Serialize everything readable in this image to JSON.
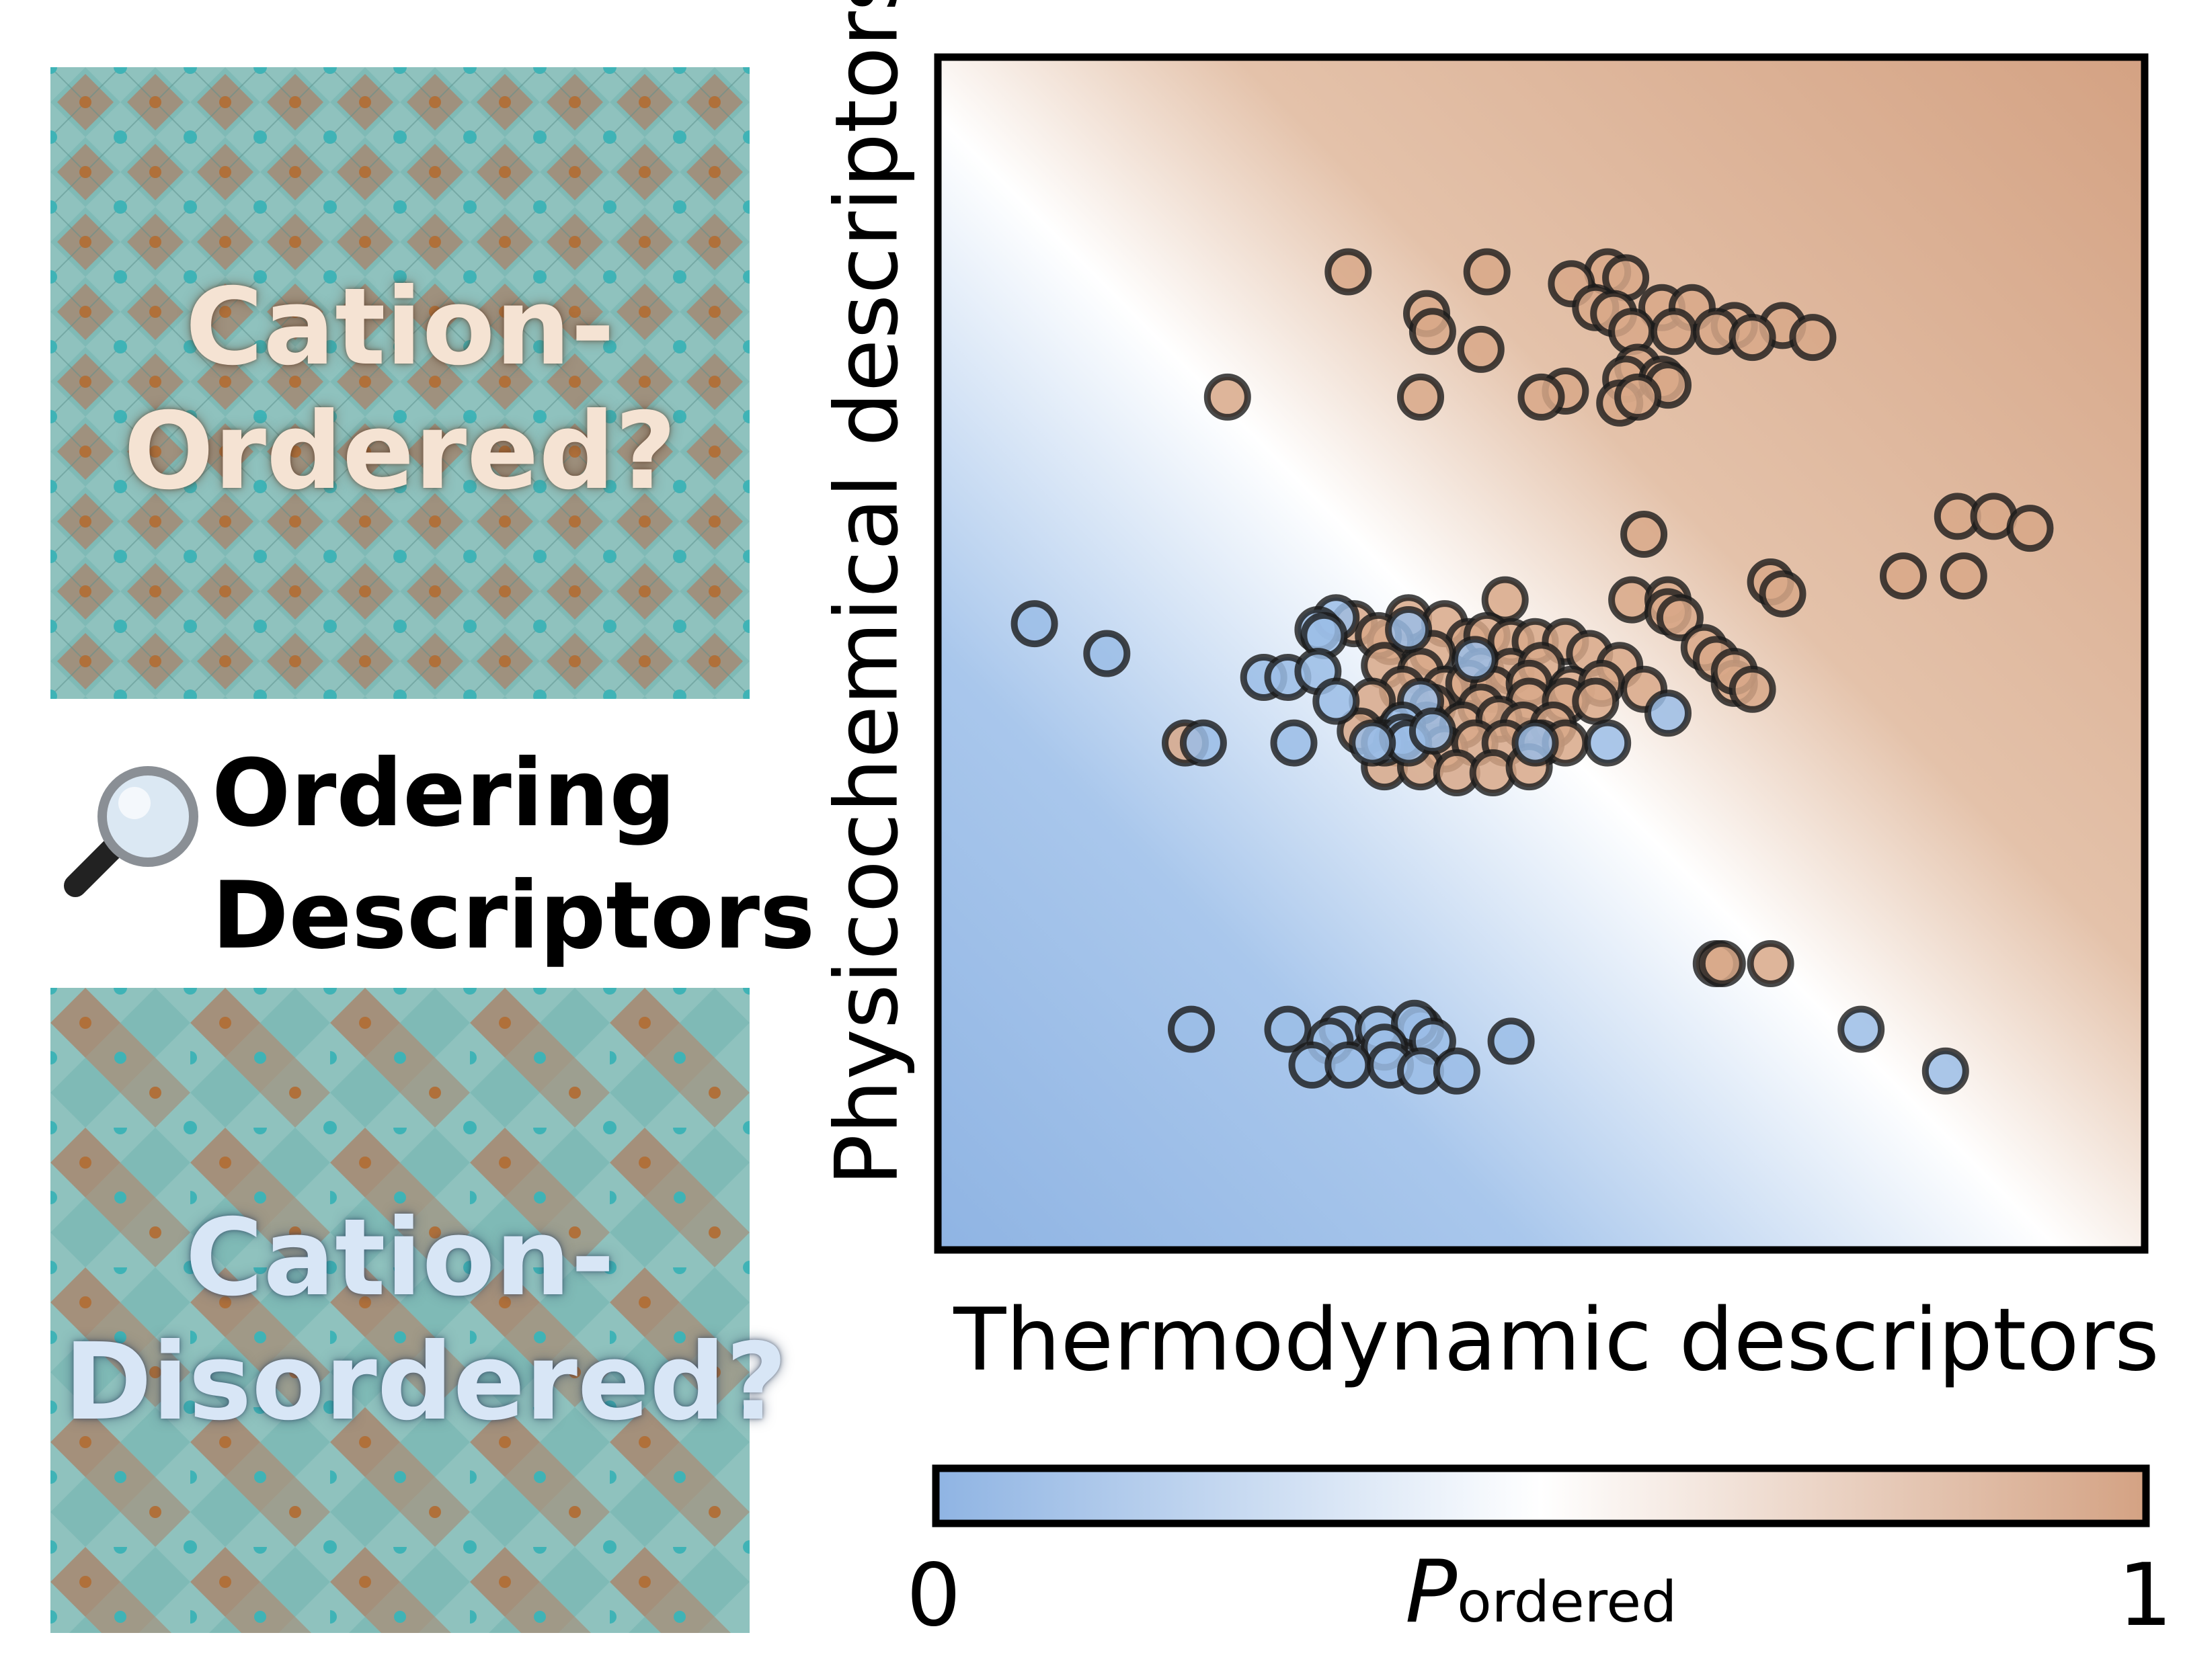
{
  "left_panel": {
    "ordered_label_line1": "Cation-",
    "ordered_label_line2": "Ordered?",
    "disordered_label_line1": "Cation-",
    "disordered_label_line2": "Disordered?",
    "title_line1": "Ordering",
    "title_line2": "Descriptors",
    "icon": "magnifying-glass-icon",
    "colors": {
      "teal": "#7bbcb8",
      "brown": "#a9836a",
      "atom_teal": "#3fb3b6",
      "atom_brown": "#b0703a"
    }
  },
  "colors": {
    "ordered": "#d8a888",
    "disordered": "#9bbde6",
    "midpoint": "#ffffff",
    "marker_edge": "#1a1a1a"
  },
  "chart_data": {
    "type": "scatter",
    "xlabel": "Thermodynamic descriptors",
    "ylabel": "Physicochemical descriptors",
    "xlim": [
      0,
      100
    ],
    "ylim": [
      0,
      100
    ],
    "ticks_shown": false,
    "grid": false,
    "background": "probability field P_ordered, decision boundary from upper-left to lower-right",
    "colorbar": {
      "label_symbol": "P",
      "label_subscript": "ordered",
      "min_label": "0",
      "max_label": "1",
      "min": 0,
      "max": 1
    },
    "series": [
      {
        "name": "ordered",
        "color": "#d8a888",
        "points": [
          [
            34,
            82
          ],
          [
            45.5,
            82
          ],
          [
            55.5,
            82
          ],
          [
            57,
            81.5
          ],
          [
            52.5,
            81
          ],
          [
            40.5,
            78.5
          ],
          [
            54.5,
            79
          ],
          [
            56,
            78.5
          ],
          [
            60,
            79
          ],
          [
            62.5,
            79
          ],
          [
            66,
            77.5
          ],
          [
            70,
            77.5
          ],
          [
            41,
            77
          ],
          [
            57.5,
            77
          ],
          [
            61,
            77
          ],
          [
            64.5,
            77
          ],
          [
            67.5,
            76.5
          ],
          [
            72.5,
            76.5
          ],
          [
            45,
            75.5
          ],
          [
            58,
            74
          ],
          [
            57,
            73
          ],
          [
            60,
            73
          ],
          [
            52,
            72
          ],
          [
            60.5,
            72.5
          ],
          [
            40,
            71.5
          ],
          [
            24,
            71.5
          ],
          [
            50,
            71.5
          ],
          [
            56.5,
            71
          ],
          [
            58,
            71.5
          ],
          [
            58.5,
            60
          ],
          [
            84.5,
            61.5
          ],
          [
            87.5,
            61.5
          ],
          [
            90.5,
            60.5
          ],
          [
            80,
            56.5
          ],
          [
            85,
            56.5
          ],
          [
            69,
            56
          ],
          [
            70,
            55
          ],
          [
            57.5,
            54.5
          ],
          [
            60.5,
            54.5
          ],
          [
            47,
            54.5
          ],
          [
            60.5,
            53.5
          ],
          [
            61.5,
            53
          ],
          [
            39,
            53
          ],
          [
            42,
            52.5
          ],
          [
            34.5,
            52.5
          ],
          [
            37.5,
            51
          ],
          [
            44,
            51
          ],
          [
            45.5,
            51.5
          ],
          [
            47.5,
            51
          ],
          [
            49.5,
            51
          ],
          [
            52,
            51
          ],
          [
            36.5,
            51.5
          ],
          [
            41,
            50
          ],
          [
            54,
            50
          ],
          [
            63.5,
            50.5
          ],
          [
            64.5,
            49.5
          ],
          [
            37,
            49
          ],
          [
            40,
            48.5
          ],
          [
            45,
            48.5
          ],
          [
            47.5,
            48.5
          ],
          [
            50,
            49
          ],
          [
            56.5,
            49
          ],
          [
            38.5,
            47
          ],
          [
            42,
            47
          ],
          [
            44,
            47.5
          ],
          [
            46,
            47
          ],
          [
            49,
            47.5
          ],
          [
            52.5,
            47
          ],
          [
            55,
            47.5
          ],
          [
            58.5,
            47
          ],
          [
            66,
            47.5
          ],
          [
            66,
            48.5
          ],
          [
            67.5,
            47
          ],
          [
            36,
            46
          ],
          [
            41,
            45.5
          ],
          [
            45,
            45.5
          ],
          [
            49,
            46
          ],
          [
            52,
            46
          ],
          [
            54.5,
            46
          ],
          [
            40.5,
            44
          ],
          [
            43.5,
            44
          ],
          [
            46.5,
            44.5
          ],
          [
            48.5,
            44
          ],
          [
            51,
            44
          ],
          [
            35,
            43.5
          ],
          [
            38,
            42.5
          ],
          [
            42,
            42
          ],
          [
            44.5,
            42.5
          ],
          [
            47,
            42.5
          ],
          [
            50,
            42.5
          ],
          [
            52,
            42.5
          ],
          [
            20.5,
            42.5
          ],
          [
            37,
            40.5
          ],
          [
            40,
            40.5
          ],
          [
            43,
            40
          ],
          [
            46,
            40
          ],
          [
            49,
            40.5
          ],
          [
            64.5,
            24
          ],
          [
            65,
            24
          ],
          [
            69,
            24
          ]
        ]
      },
      {
        "name": "disordered",
        "color": "#9bbde6",
        "points": [
          [
            8,
            52.5
          ],
          [
            14,
            50
          ],
          [
            33,
            53
          ],
          [
            31.5,
            52
          ],
          [
            32,
            51.5
          ],
          [
            39,
            52
          ],
          [
            27,
            48
          ],
          [
            29,
            48
          ],
          [
            31.5,
            48.5
          ],
          [
            44.5,
            49.5
          ],
          [
            33,
            46
          ],
          [
            40,
            46
          ],
          [
            60.5,
            45
          ],
          [
            38.5,
            44
          ],
          [
            29.5,
            42.5
          ],
          [
            37,
            42.5
          ],
          [
            38.5,
            43
          ],
          [
            39,
            42.5
          ],
          [
            41,
            43.5
          ],
          [
            49.5,
            42.5
          ],
          [
            55.5,
            42.5
          ],
          [
            22,
            42.5
          ],
          [
            36,
            42.5
          ],
          [
            21,
            18.5
          ],
          [
            29,
            18.5
          ],
          [
            33.5,
            18.5
          ],
          [
            36.5,
            18.5
          ],
          [
            40,
            18.5
          ],
          [
            39.5,
            19
          ],
          [
            32.5,
            17.5
          ],
          [
            37,
            17
          ],
          [
            41,
            17.5
          ],
          [
            47.5,
            17.5
          ],
          [
            31,
            15.5
          ],
          [
            34,
            15.5
          ],
          [
            37.5,
            15.5
          ],
          [
            40,
            15
          ],
          [
            43,
            15
          ],
          [
            76.5,
            18.5
          ],
          [
            83.5,
            15
          ]
        ]
      }
    ]
  }
}
